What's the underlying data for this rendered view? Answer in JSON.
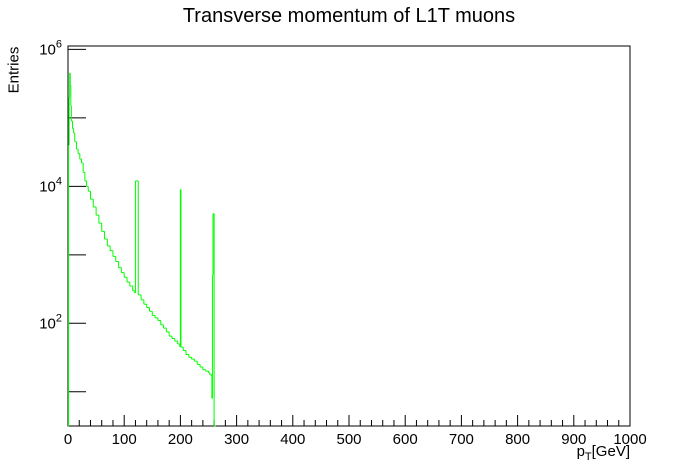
{
  "chart_data": {
    "type": "histogram",
    "title": "Transverse momentum of L1T muons",
    "xlabel": "p_T [GeV]",
    "xlabel_main": "p",
    "xlabel_sub": "T",
    "xlabel_unit": "[GeV]",
    "ylabel": "Entries",
    "xlim": [
      0,
      1000
    ],
    "ylim_log10": [
      0.5,
      6.05
    ],
    "log_y": true,
    "grid": false,
    "line_color": "#00ff00",
    "x_ticks": [
      0,
      100,
      200,
      300,
      400,
      500,
      600,
      700,
      800,
      900,
      1000
    ],
    "y_ticks": [
      {
        "base": "10",
        "exp": "2",
        "value": 100
      },
      {
        "base": "10",
        "exp": "4",
        "value": 10000
      },
      {
        "base": "10",
        "exp": "6",
        "value": 1000000
      }
    ],
    "bin_width": 1,
    "x": [
      0,
      1,
      2,
      3,
      4,
      5,
      6,
      8,
      10,
      12,
      15,
      18,
      21,
      24,
      27,
      30,
      33,
      36,
      40,
      45,
      50,
      55,
      60,
      65,
      70,
      75,
      80,
      85,
      90,
      95,
      100,
      105,
      110,
      115,
      118,
      120,
      125,
      130,
      135,
      140,
      145,
      150,
      155,
      160,
      165,
      170,
      175,
      180,
      185,
      190,
      195,
      199,
      200,
      201,
      205,
      210,
      215,
      220,
      225,
      230,
      235,
      240,
      245,
      250,
      252,
      255,
      256,
      257,
      258,
      260,
      261,
      262
    ],
    "values": [
      3,
      40000,
      200000,
      450000,
      300000,
      150000,
      90000,
      70000,
      60000,
      45000,
      35000,
      30000,
      25000,
      22000,
      16000,
      12000,
      10000,
      8500,
      6500,
      5000,
      3800,
      2900,
      2200,
      1700,
      1350,
      1150,
      950,
      800,
      650,
      550,
      470,
      400,
      350,
      300,
      280,
      12000,
      260,
      220,
      190,
      170,
      150,
      130,
      120,
      110,
      95,
      85,
      75,
      65,
      60,
      55,
      50,
      45,
      9000,
      45,
      40,
      35,
      32,
      30,
      28,
      25,
      23,
      21,
      20,
      19,
      18,
      17,
      8,
      500,
      4000,
      2,
      1,
      1
    ]
  }
}
